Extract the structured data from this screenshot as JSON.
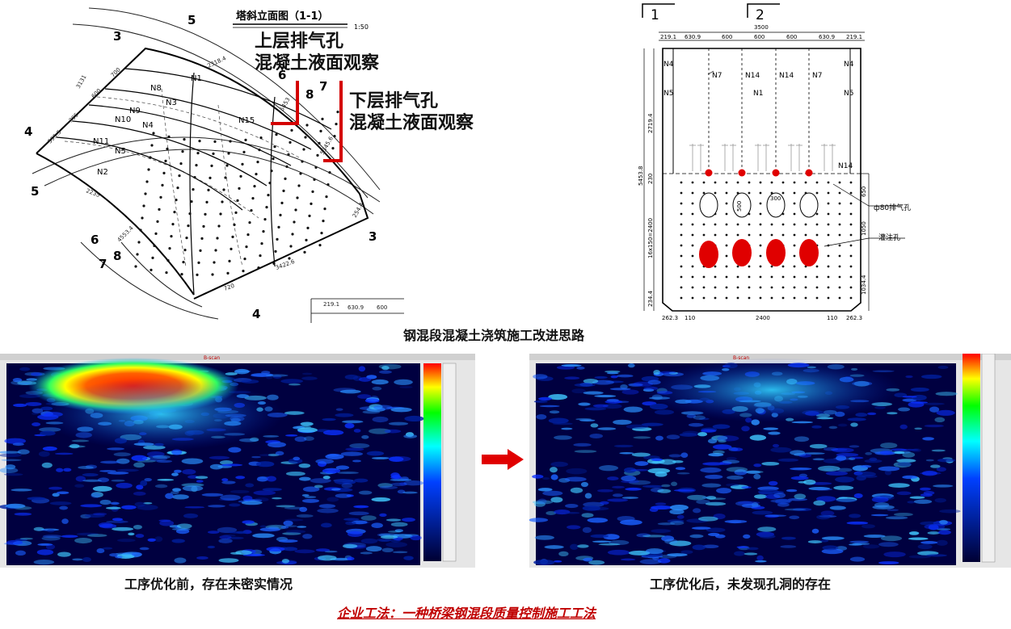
{
  "left_drawing": {
    "title": "塔斜立面图（1-1）",
    "scale": "1:50",
    "section_marks": [
      "3",
      "5",
      "4",
      "5",
      "6",
      "7",
      "8",
      "6",
      "7",
      "8",
      "3",
      "4"
    ],
    "members": [
      "N1",
      "N8",
      "N3",
      "N9",
      "N10",
      "N4",
      "N11",
      "N5",
      "N2",
      "N15"
    ],
    "dimensions": [
      "2318.4",
      "3131",
      "595.5",
      "395",
      "600",
      "700",
      "5453",
      "5345.6",
      "4553.4",
      "2235",
      "219.1",
      "630.9",
      "600",
      "3422.6",
      "254.4",
      "720"
    ]
  },
  "callouts": {
    "upper": [
      "上层排气孔",
      "混凝土液面观察"
    ],
    "lower": [
      "下层排气孔",
      "混凝土液面观察"
    ],
    "accent_color": "#d40000"
  },
  "right_drawing": {
    "section_marks": [
      "1",
      "2"
    ],
    "top_dims": [
      "219.1",
      "630.9",
      "600",
      "600",
      "600",
      "630.9",
      "219.1"
    ],
    "overall_width": "3500",
    "side_labels_left": [
      "N4",
      "N5"
    ],
    "side_labels_right": [
      "N4",
      "N5"
    ],
    "inner_labels": [
      "N7",
      "N14",
      "N14",
      "N7"
    ],
    "center_label": "N1",
    "n14_label": "N14",
    "vent_label": "ф80排气孔",
    "grout_label": "灌注孔",
    "left_dims": [
      "2719.4",
      "5453.8",
      "230",
      "16x150=2400",
      "1034.4",
      "234.4"
    ],
    "right_dims": [
      "650",
      "1050"
    ],
    "hole_dims": [
      "500",
      "300"
    ],
    "bottom_dims": [
      "262.3",
      "110",
      "2400",
      "110",
      "262.3"
    ]
  },
  "center_title": "钢混段混凝土浇筑施工改进思路",
  "scans": {
    "header": "B-scan",
    "before_caption": "工序优化前，存在未密实情况",
    "after_caption": "工序优化后，未发现孔洞的存在"
  },
  "footer": "企业工法：一种桥梁钢混段质量控制施工工法"
}
